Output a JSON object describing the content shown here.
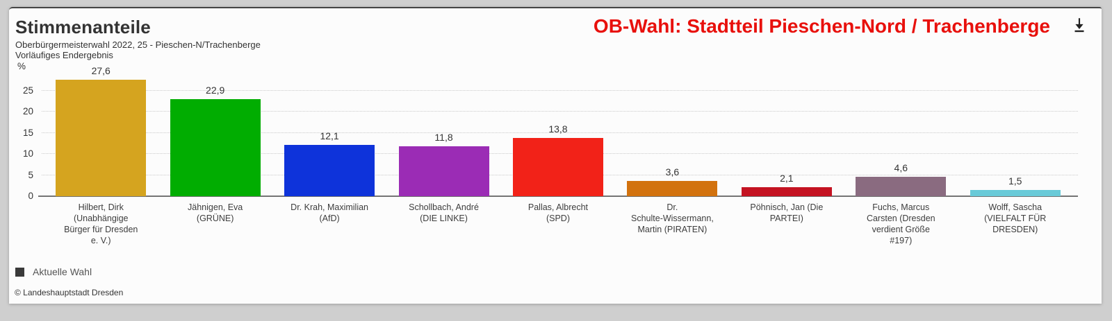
{
  "header": {
    "title": "Stimmenanteile",
    "subtitle_line1": "Oberbürgermeisterwahl 2022, 25 - Pieschen-N/Trachenberge",
    "subtitle_line2": "Vorläufiges Endergebnis",
    "context_title": "OB-Wahl: Stadtteil Pieschen-Nord / Trachenberge",
    "context_title_color": "#e8100c"
  },
  "chart_data": {
    "type": "bar",
    "title": "Stimmenanteile",
    "subtitle": "Oberbürgermeisterwahl 2022, 25 - Pieschen-N/Trachenberge — Vorläufiges Endergebnis",
    "ylabel": "%",
    "ylim": [
      0,
      28
    ],
    "yticks": [
      0,
      5,
      10,
      15,
      20,
      25
    ],
    "grid": "horizontal-dotted",
    "legend_position": "bottom-left",
    "legend": {
      "label": "Aktuelle Wahl",
      "color": "#3a3a3a"
    },
    "categories": [
      "Hilbert, Dirk (Unabhängige Bürger für Dresden e. V.)",
      "Jähnigen, Eva (GRÜNE)",
      "Dr. Krah, Maximilian (AfD)",
      "Schollbach, André (DIE LINKE)",
      "Pallas, Albrecht (SPD)",
      "Dr. Schulte-Wissermann, Martin (PIRATEN)",
      "Pöhnisch, Jan (Die PARTEI)",
      "Fuchs, Marcus Carsten (Dresden verdient Größe #197)",
      "Wolff, Sascha (VIELFALT FÜR DRESDEN)"
    ],
    "category_labels": [
      "Hilbert, Dirk\n(Unabhängige\nBürger für Dresden\ne. V.)",
      "Jähnigen, Eva\n(GRÜNE)",
      "Dr. Krah, Maximilian\n(AfD)",
      "Schollbach, André\n(DIE LINKE)",
      "Pallas, Albrecht\n(SPD)",
      "Dr.\nSchulte-Wissermann,\nMartin (PIRATEN)",
      "Pöhnisch, Jan (Die\nPARTEI)",
      "Fuchs, Marcus\nCarsten (Dresden\nverdient Größe\n#197)",
      "Wolff, Sascha\n(VIELFALT FÜR\nDRESDEN)"
    ],
    "values": [
      27.6,
      22.9,
      12.1,
      11.8,
      13.8,
      3.6,
      2.1,
      4.6,
      1.5
    ],
    "value_labels": [
      "27,6",
      "22,9",
      "12,1",
      "11,8",
      "13,8",
      "3,6",
      "2,1",
      "4,6",
      "1,5"
    ],
    "bar_colors": [
      "#d5a41f",
      "#01ad01",
      "#0e33da",
      "#9b2cb5",
      "#f22218",
      "#d2720e",
      "#c41322",
      "#8a6b80",
      "#69cad8"
    ]
  },
  "footer": {
    "copyright": "© Landeshauptstadt Dresden"
  }
}
